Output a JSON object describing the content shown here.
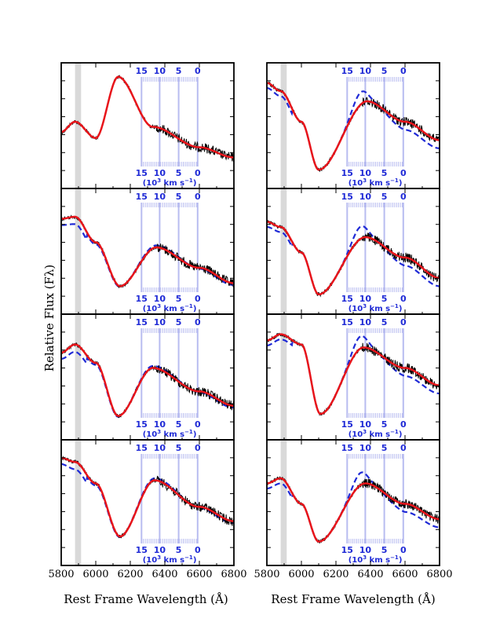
{
  "chart_data": {
    "type": "line",
    "layout": "4 rows x 2 columns of spectrum panels",
    "ylabel": "Relative Flux (Fλ)",
    "xlabel": "Rest Frame Wavelength (Å)",
    "xlim": [
      5800,
      6800
    ],
    "x_tick_labels": [
      "5800",
      "6000",
      "6200",
      "6400",
      "6600",
      "6800"
    ],
    "shaded_band": [
      5880,
      5915
    ],
    "velocity_scale": {
      "labels": [
        "15",
        "10",
        "5",
        "0"
      ],
      "unit_label": "(10",
      "unit_sup": "3",
      "unit_rest": " km s",
      "unit_sup2": "−1",
      "unit_close": ")",
      "line_wavelengths": [
        6265,
        6370,
        6480,
        6590
      ]
    },
    "series_names": [
      "observed",
      "model",
      "alternative model"
    ],
    "colors": {
      "observed": "#000000",
      "model": "#e8141a",
      "alternative": "#1f2ad6",
      "velocity": "#b8bcf0",
      "band": "#d9d9d9"
    },
    "panels": [
      {
        "col": 0,
        "row": 0,
        "continuum": [
          [
            5800,
            0.6
          ],
          [
            5880,
            0.5
          ],
          [
            6000,
            0.66
          ],
          [
            6130,
            0.06
          ],
          [
            6330,
            0.55
          ],
          [
            6600,
            0.75
          ],
          [
            6800,
            0.85
          ]
        ],
        "min_wave": 6125,
        "alt": null
      },
      {
        "col": 0,
        "row": 1,
        "continuum": [
          [
            5800,
            0.22
          ],
          [
            5880,
            0.2
          ],
          [
            6000,
            0.45
          ],
          [
            6140,
            0.88
          ],
          [
            6350,
            0.5
          ],
          [
            6600,
            0.7
          ],
          [
            6800,
            0.85
          ]
        ],
        "min_wave": 6140,
        "alt": "minor"
      },
      {
        "col": 0,
        "row": 2,
        "continuum": [
          [
            5800,
            0.3
          ],
          [
            5880,
            0.22
          ],
          [
            6000,
            0.4
          ],
          [
            6130,
            0.92
          ],
          [
            6330,
            0.45
          ],
          [
            6600,
            0.68
          ],
          [
            6800,
            0.82
          ]
        ],
        "min_wave": 6130,
        "alt": "minor"
      },
      {
        "col": 0,
        "row": 3,
        "continuum": [
          [
            5800,
            0.1
          ],
          [
            5880,
            0.14
          ],
          [
            6000,
            0.35
          ],
          [
            6140,
            0.87
          ],
          [
            6340,
            0.32
          ],
          [
            6600,
            0.58
          ],
          [
            6800,
            0.72
          ]
        ],
        "min_wave": 6140,
        "alt": "minor"
      },
      {
        "col": 1,
        "row": 0,
        "continuum": [
          [
            5800,
            0.12
          ],
          [
            5880,
            0.2
          ],
          [
            6000,
            0.5
          ],
          [
            6100,
            0.97
          ],
          [
            6380,
            0.3
          ],
          [
            6600,
            0.5
          ],
          [
            6800,
            0.68
          ]
        ],
        "min_wave": 6100,
        "alt": "bump"
      },
      {
        "col": 1,
        "row": 1,
        "continuum": [
          [
            5800,
            0.25
          ],
          [
            5880,
            0.3
          ],
          [
            6000,
            0.55
          ],
          [
            6100,
            0.96
          ],
          [
            6370,
            0.4
          ],
          [
            6600,
            0.6
          ],
          [
            6800,
            0.8
          ]
        ],
        "min_wave": 6100,
        "alt": "bump"
      },
      {
        "col": 1,
        "row": 2,
        "continuum": [
          [
            5800,
            0.18
          ],
          [
            5880,
            0.12
          ],
          [
            6000,
            0.22
          ],
          [
            6110,
            0.9
          ],
          [
            6360,
            0.25
          ],
          [
            6600,
            0.45
          ],
          [
            6800,
            0.62
          ]
        ],
        "min_wave": 6110,
        "alt": "bump"
      },
      {
        "col": 1,
        "row": 3,
        "continuum": [
          [
            5800,
            0.35
          ],
          [
            5880,
            0.3
          ],
          [
            6000,
            0.55
          ],
          [
            6100,
            0.92
          ],
          [
            6370,
            0.35
          ],
          [
            6600,
            0.55
          ],
          [
            6800,
            0.7
          ]
        ],
        "min_wave": 6100,
        "alt": "bump"
      }
    ]
  }
}
